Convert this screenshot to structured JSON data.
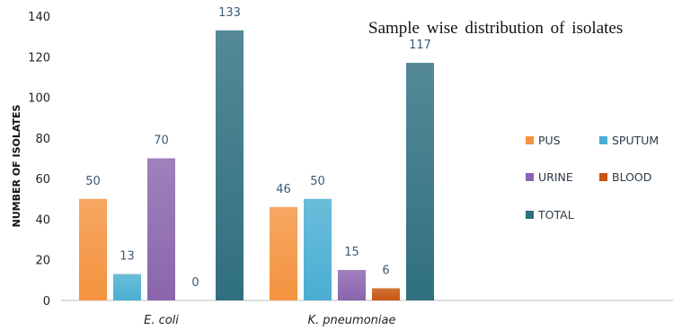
{
  "chart_data": {
    "type": "bar",
    "title": "Sample wise distribution  of isolates",
    "ylabel": "NUMBER OF ISOLATES",
    "xlabel": "",
    "categories": [
      "E. coli",
      "K. pneumoniae"
    ],
    "series": [
      {
        "name": "PUS",
        "values": [
          50,
          46
        ],
        "color": "#f4933f"
      },
      {
        "name": "SPUTUM",
        "values": [
          13,
          50
        ],
        "color": "#4aaed2"
      },
      {
        "name": "URINE",
        "values": [
          70,
          15
        ],
        "color": "#8a65ad"
      },
      {
        "name": "BLOOD",
        "values": [
          0,
          6
        ],
        "color": "#c8560f"
      },
      {
        "name": "TOTAL",
        "values": [
          133,
          117
        ],
        "color": "#2f6f80"
      }
    ],
    "ylim": [
      0,
      140
    ],
    "yticks": [
      0,
      20,
      40,
      60,
      80,
      100,
      120,
      140
    ],
    "grid": false,
    "legend": "right"
  }
}
